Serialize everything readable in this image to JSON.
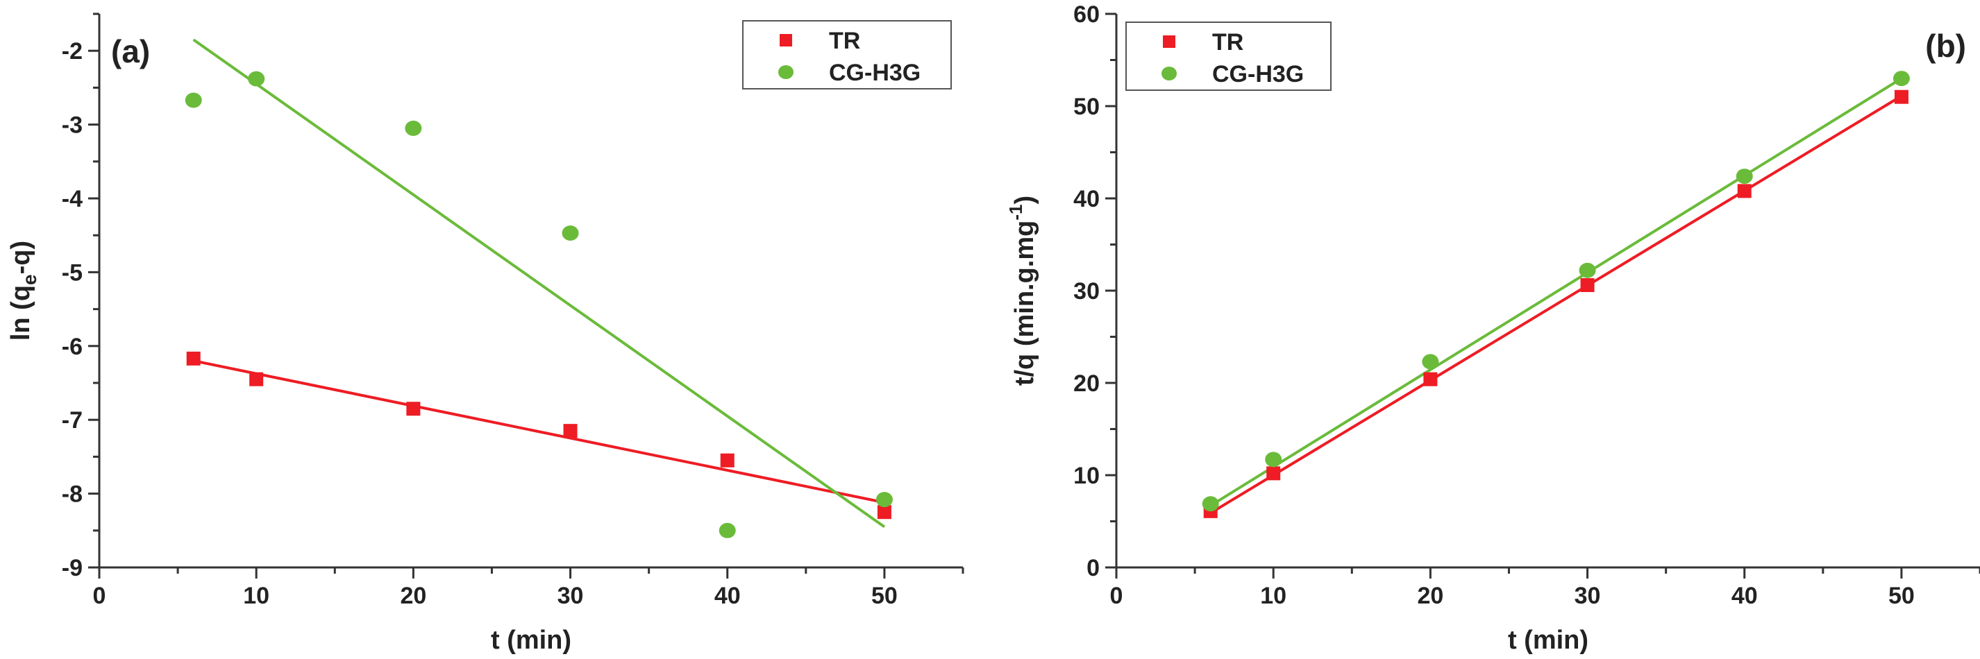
{
  "chart_data": [
    {
      "type": "scatter",
      "panel_label": "(a)",
      "xlabel": "t (min)",
      "ylabel": {
        "main": "ln (q",
        "sub": "e",
        "tail": "-q)"
      },
      "xlim": [
        0,
        55
      ],
      "ylim": [
        -9,
        -1.5
      ],
      "xticks": [
        0,
        10,
        20,
        30,
        40,
        50
      ],
      "yticks": [
        -9,
        -8,
        -7,
        -6,
        -5,
        -4,
        -3,
        -2
      ],
      "grid": false,
      "legend": "top-right",
      "series": [
        {
          "name": "TR",
          "marker": "square",
          "color": "#ee1c24",
          "points": [
            [
              6,
              -6.17
            ],
            [
              10,
              -6.45
            ],
            [
              20,
              -6.85
            ],
            [
              30,
              -7.15
            ],
            [
              40,
              -7.55
            ],
            [
              50,
              -8.25
            ]
          ],
          "fit": [
            [
              6,
              -6.2
            ],
            [
              50,
              -8.12
            ]
          ]
        },
        {
          "name": "CG-H3G",
          "marker": "circle",
          "color": "#6abb3a",
          "points": [
            [
              6,
              -2.67
            ],
            [
              10,
              -2.38
            ],
            [
              20,
              -3.05
            ],
            [
              30,
              -4.47
            ],
            [
              40,
              -8.5
            ],
            [
              50,
              -8.08
            ]
          ],
          "fit": [
            [
              6,
              -1.85
            ],
            [
              50,
              -8.45
            ]
          ]
        }
      ]
    },
    {
      "type": "scatter",
      "panel_label": "(b)",
      "xlabel": "t (min)",
      "ylabel": {
        "main": "t/q (min.g.mg",
        "sup": "-1",
        "tail": ")"
      },
      "xlim": [
        0,
        55
      ],
      "ylim": [
        0,
        60
      ],
      "xticks": [
        0,
        10,
        20,
        30,
        40,
        50
      ],
      "yticks": [
        0,
        10,
        20,
        30,
        40,
        50,
        60
      ],
      "grid": false,
      "legend": "top-left",
      "series": [
        {
          "name": "TR",
          "marker": "square",
          "color": "#ee1c24",
          "points": [
            [
              6,
              6.1
            ],
            [
              10,
              10.2
            ],
            [
              20,
              20.4
            ],
            [
              30,
              30.6
            ],
            [
              40,
              40.8
            ],
            [
              50,
              51.0
            ]
          ],
          "fit": [
            [
              6,
              5.9
            ],
            [
              50,
              51.1
            ]
          ]
        },
        {
          "name": "CG-H3G",
          "marker": "circle",
          "color": "#6abb3a",
          "points": [
            [
              6,
              6.9
            ],
            [
              10,
              11.7
            ],
            [
              20,
              22.3
            ],
            [
              30,
              32.2
            ],
            [
              40,
              42.4
            ],
            [
              50,
              53.0
            ]
          ],
          "fit": [
            [
              6,
              6.7
            ],
            [
              50,
              53.0
            ]
          ]
        }
      ]
    }
  ]
}
